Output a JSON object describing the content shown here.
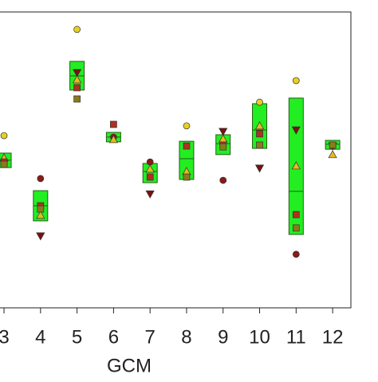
{
  "chart_data": {
    "type": "box-markers",
    "x_label": "GCM",
    "x": [
      3,
      4,
      5,
      6,
      7,
      8,
      9,
      10,
      11,
      12
    ],
    "xlim": [
      2.89,
      12.5
    ],
    "xticks": [
      3,
      4,
      5,
      6,
      7,
      8,
      9,
      10,
      11,
      12
    ],
    "ylim": [
      0,
      100
    ],
    "box_color": "#22ee22",
    "boxes": {
      "low": [
        47.4,
        29.4,
        73.6,
        56.1,
        42.3,
        43.4,
        51.8,
        53.9,
        24.8,
        53.6
      ],
      "median": [
        49.9,
        34.5,
        78.4,
        57.7,
        46.1,
        50.4,
        55.5,
        60.1,
        39.4,
        55.3
      ],
      "high": [
        52.3,
        39.6,
        83.3,
        59.3,
        48.8,
        56.3,
        58.5,
        69.0,
        70.9,
        56.6
      ]
    },
    "series": [
      {
        "marker": "circle",
        "color": "#e8d020",
        "values": [
          58.2,
          null,
          94.1,
          null,
          null,
          61.5,
          null,
          69.5,
          76.8,
          null
        ]
      },
      {
        "marker": "circle",
        "color": "#8b1a1a",
        "values": [
          null,
          43.7,
          null,
          57.7,
          49.3,
          null,
          43.1,
          null,
          18.1,
          54.7
        ]
      },
      {
        "marker": "down-triangle",
        "color": "#7a1010",
        "values": [
          48.8,
          24.3,
          79.5,
          null,
          38.5,
          null,
          59.6,
          47.2,
          60.1,
          54.7
        ]
      },
      {
        "marker": "triangle",
        "color": "#e8b820",
        "values": [
          50.7,
          31.3,
          77.1,
          56.9,
          46.9,
          46.1,
          57.1,
          61.5,
          48.0,
          51.8
        ]
      },
      {
        "marker": "square",
        "color": "#b03020",
        "values": [
          49.3,
          34.5,
          74.4,
          62.0,
          44.2,
          54.7,
          55.0,
          58.8,
          31.5,
          null
        ]
      },
      {
        "marker": "square",
        "color": "#8b7a1a",
        "values": [
          48.5,
          33.4,
          70.6,
          null,
          null,
          44.2,
          54.4,
          55.0,
          27.0,
          55.0
        ]
      }
    ]
  }
}
